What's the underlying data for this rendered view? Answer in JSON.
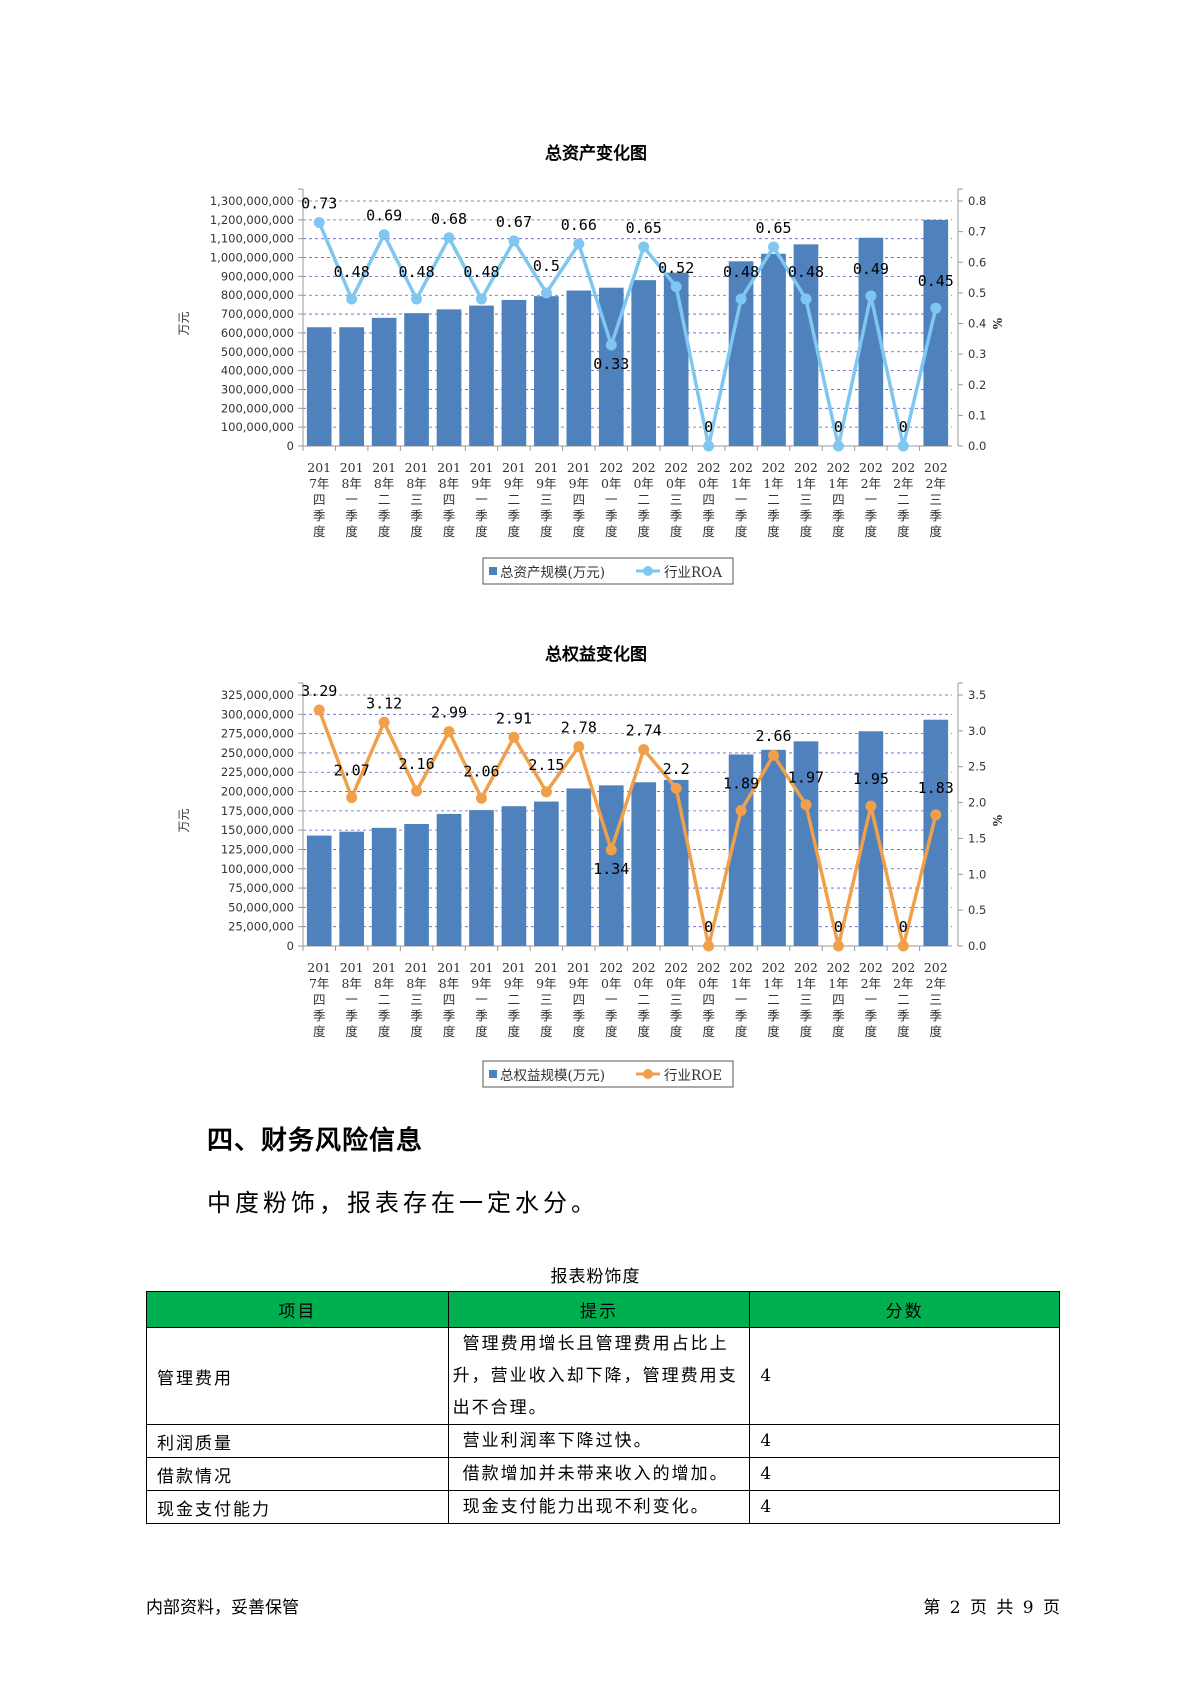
{
  "charts": [
    {
      "id": "assets",
      "title": "总资产变化图",
      "ylabel": "万元",
      "y2label": "%",
      "bar_color": "#4f81bd",
      "line_color": "#7fc7f0",
      "left_ticks": [
        "0",
        "100,000,000",
        "200,000,000",
        "300,000,000",
        "400,000,000",
        "500,000,000",
        "600,000,000",
        "700,000,000",
        "800,000,000",
        "900,000,000",
        "1,000,000,000",
        "1,100,000,000",
        "1,200,000,000",
        "1,300,000,000"
      ],
      "right_ticks": [
        "0.0",
        "0.1",
        "0.2",
        "0.3",
        "0.4",
        "0.5",
        "0.6",
        "0.7",
        "0.8"
      ],
      "legend": [
        "总资产规模(万元)",
        "行业ROA"
      ]
    },
    {
      "id": "equity",
      "title": "总权益变化图",
      "ylabel": "万元",
      "y2label": "%",
      "bar_color": "#4f81bd",
      "line_color": "#f0a04b",
      "left_ticks": [
        "0",
        "25,000,000",
        "50,000,000",
        "75,000,000",
        "100,000,000",
        "125,000,000",
        "150,000,000",
        "175,000,000",
        "200,000,000",
        "225,000,000",
        "250,000,000",
        "275,000,000",
        "300,000,000",
        "325,000,000"
      ],
      "right_ticks": [
        "0.0",
        "0.5",
        "1.0",
        "1.5",
        "2.0",
        "2.5",
        "3.0",
        "3.5"
      ],
      "legend": [
        "总权益规模(万元)",
        "行业ROE"
      ]
    }
  ],
  "chart_data": [
    {
      "type": "bar",
      "title": "总资产变化图",
      "xlabel": "",
      "ylabel": "万元",
      "y2label": "%",
      "categories": [
        "2017年四季度",
        "2018年一季度",
        "2018年二季度",
        "2018年三季度",
        "2018年四季度",
        "2019年一季度",
        "2019年二季度",
        "2019年三季度",
        "2019年四季度",
        "2020年一季度",
        "2020年二季度",
        "2020年三季度",
        "2020年四季度",
        "2021年一季度",
        "2021年二季度",
        "2021年三季度",
        "2021年四季度",
        "2022年一季度",
        "2022年二季度",
        "2022年三季度"
      ],
      "category_lines": [
        [
          "201",
          "7年",
          "四",
          "季",
          "度"
        ],
        [
          "201",
          "8年",
          "一",
          "季",
          "度"
        ],
        [
          "201",
          "8年",
          "二",
          "季",
          "度"
        ],
        [
          "201",
          "8年",
          "三",
          "季",
          "度"
        ],
        [
          "201",
          "8年",
          "四",
          "季",
          "度"
        ],
        [
          "201",
          "9年",
          "一",
          "季",
          "度"
        ],
        [
          "201",
          "9年",
          "二",
          "季",
          "度"
        ],
        [
          "201",
          "9年",
          "三",
          "季",
          "度"
        ],
        [
          "201",
          "9年",
          "四",
          "季",
          "度"
        ],
        [
          "202",
          "0年",
          "一",
          "季",
          "度"
        ],
        [
          "202",
          "0年",
          "二",
          "季",
          "度"
        ],
        [
          "202",
          "0年",
          "三",
          "季",
          "度"
        ],
        [
          "202",
          "0年",
          "四",
          "季",
          "度"
        ],
        [
          "202",
          "1年",
          "一",
          "季",
          "度"
        ],
        [
          "202",
          "1年",
          "二",
          "季",
          "度"
        ],
        [
          "202",
          "1年",
          "三",
          "季",
          "度"
        ],
        [
          "202",
          "1年",
          "四",
          "季",
          "度"
        ],
        [
          "202",
          "2年",
          "一",
          "季",
          "度"
        ],
        [
          "202",
          "2年",
          "二",
          "季",
          "度"
        ],
        [
          "202",
          "2年",
          "三",
          "季",
          "度"
        ]
      ],
      "ylim": [
        0,
        1300000000
      ],
      "y2lim": [
        0,
        0.8
      ],
      "grid": true,
      "legend_position": "bottom",
      "series": [
        {
          "name": "总资产规模(万元)",
          "type": "bar",
          "axis": "left",
          "values": [
            630000000,
            630000000,
            680000000,
            705000000,
            725000000,
            745000000,
            775000000,
            795000000,
            825000000,
            840000000,
            880000000,
            920000000,
            0,
            980000000,
            1020000000,
            1070000000,
            0,
            1105000000,
            0,
            1200000000
          ]
        },
        {
          "name": "行业ROA",
          "type": "line",
          "axis": "right",
          "values": [
            0.73,
            0.48,
            0.69,
            0.48,
            0.68,
            0.48,
            0.67,
            0.5,
            0.66,
            0.33,
            0.65,
            0.52,
            0,
            0.48,
            0.65,
            0.48,
            0,
            0.49,
            0,
            0.45
          ],
          "labels": [
            "0.73",
            "0.48",
            "0.69",
            "0.48",
            "0.68",
            "0.48",
            "0.67",
            "0.5",
            "0.66",
            "0.33",
            "0.65",
            "0.52",
            "0",
            "0.48",
            "0.65",
            "0.48",
            "0",
            "0.49",
            "0",
            "0.45"
          ]
        }
      ]
    },
    {
      "type": "bar",
      "title": "总权益变化图",
      "xlabel": "",
      "ylabel": "万元",
      "y2label": "%",
      "categories": [
        "2017年四季度",
        "2018年一季度",
        "2018年二季度",
        "2018年三季度",
        "2018年四季度",
        "2019年一季度",
        "2019年二季度",
        "2019年三季度",
        "2019年四季度",
        "2020年一季度",
        "2020年二季度",
        "2020年三季度",
        "2020年四季度",
        "2021年一季度",
        "2021年二季度",
        "2021年三季度",
        "2021年四季度",
        "2022年一季度",
        "2022年二季度",
        "2022年三季度"
      ],
      "category_lines": [
        [
          "201",
          "7年",
          "四",
          "季",
          "度"
        ],
        [
          "201",
          "8年",
          "一",
          "季",
          "度"
        ],
        [
          "201",
          "8年",
          "二",
          "季",
          "度"
        ],
        [
          "201",
          "8年",
          "三",
          "季",
          "度"
        ],
        [
          "201",
          "8年",
          "四",
          "季",
          "度"
        ],
        [
          "201",
          "9年",
          "一",
          "季",
          "度"
        ],
        [
          "201",
          "9年",
          "二",
          "季",
          "度"
        ],
        [
          "201",
          "9年",
          "三",
          "季",
          "度"
        ],
        [
          "201",
          "9年",
          "四",
          "季",
          "度"
        ],
        [
          "202",
          "0年",
          "一",
          "季",
          "度"
        ],
        [
          "202",
          "0年",
          "二",
          "季",
          "度"
        ],
        [
          "202",
          "0年",
          "三",
          "季",
          "度"
        ],
        [
          "202",
          "0年",
          "四",
          "季",
          "度"
        ],
        [
          "202",
          "1年",
          "一",
          "季",
          "度"
        ],
        [
          "202",
          "1年",
          "二",
          "季",
          "度"
        ],
        [
          "202",
          "1年",
          "三",
          "季",
          "度"
        ],
        [
          "202",
          "1年",
          "四",
          "季",
          "度"
        ],
        [
          "202",
          "2年",
          "一",
          "季",
          "度"
        ],
        [
          "202",
          "2年",
          "二",
          "季",
          "度"
        ],
        [
          "202",
          "2年",
          "三",
          "季",
          "度"
        ]
      ],
      "ylim": [
        0,
        325000000
      ],
      "y2lim": [
        0,
        3.5
      ],
      "grid": true,
      "legend_position": "bottom",
      "series": [
        {
          "name": "总权益规模(万元)",
          "type": "bar",
          "axis": "left",
          "values": [
            143000000,
            148000000,
            153000000,
            158000000,
            171000000,
            176000000,
            181000000,
            187000000,
            204000000,
            208000000,
            212000000,
            215000000,
            0,
            248000000,
            254000000,
            265000000,
            0,
            278000000,
            0,
            293000000
          ]
        },
        {
          "name": "行业ROE",
          "type": "line",
          "axis": "right",
          "values": [
            3.29,
            2.07,
            3.12,
            2.16,
            2.99,
            2.06,
            2.91,
            2.15,
            2.78,
            1.34,
            2.74,
            2.2,
            0,
            1.89,
            2.66,
            1.97,
            0,
            1.95,
            0,
            1.83
          ],
          "labels": [
            "3.29",
            "2.07",
            "3.12",
            "2.16",
            "2.99",
            "2.06",
            "2.91",
            "2.15",
            "2.78",
            "1.34",
            "2.74",
            "2.2",
            "0",
            "1.89",
            "2.66",
            "1.97",
            "0",
            "1.95",
            "0",
            "1.83"
          ]
        }
      ]
    }
  ],
  "section": {
    "heading": "四、财务风险信息",
    "summary": "中度粉饰，报表存在一定水分。"
  },
  "table": {
    "caption": "报表粉饰度",
    "headers": [
      "项目",
      "提示",
      "分数"
    ],
    "rows": [
      {
        "item": "管理费用",
        "hint_lines": [
          "管理费用增长且管理费用占比上",
          "升，营业收入却下降，管理费用支",
          "出不合理。"
        ],
        "score": "4"
      },
      {
        "item": "利润质量",
        "hint_lines": [
          "营业利润率下降过快。"
        ],
        "score": "4"
      },
      {
        "item": "借款情况",
        "hint_lines": [
          "借款增加并未带来收入的增加。"
        ],
        "score": "4"
      },
      {
        "item": "现金支付能力",
        "hint_lines": [
          "现金支付能力出现不利变化。"
        ],
        "score": "4"
      }
    ],
    "header_color": "#00b050"
  },
  "footer": {
    "left": "内部资料，妥善保管",
    "right": "第 2 页  共 9 页"
  }
}
